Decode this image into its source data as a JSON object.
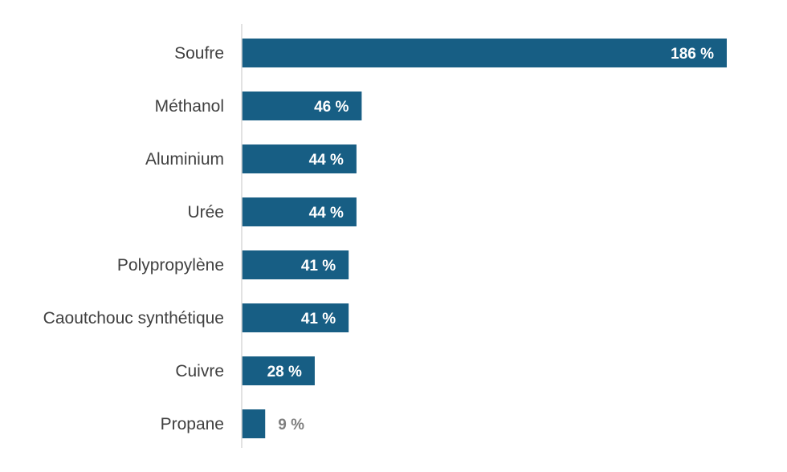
{
  "chart_data": {
    "type": "bar",
    "orientation": "horizontal",
    "categories": [
      "Soufre",
      "Méthanol",
      "Aluminium",
      "Urée",
      "Polypropylène",
      "Caoutchouc synthétique",
      "Cuivre",
      "Propane"
    ],
    "values": [
      186,
      46,
      44,
      44,
      41,
      41,
      28,
      9
    ],
    "value_labels": [
      "186 %",
      "46 %",
      "44 %",
      "44 %",
      "41 %",
      "41 %",
      "28 %",
      "9 %"
    ],
    "xlim": [
      0,
      186
    ],
    "grid": false,
    "legend": "none"
  },
  "colors": {
    "bar": "#175e84",
    "label_inside": "#ffffff",
    "label_outside": "#7f7f7f",
    "axis": "#d9d9d9",
    "category_text": "#404040"
  }
}
